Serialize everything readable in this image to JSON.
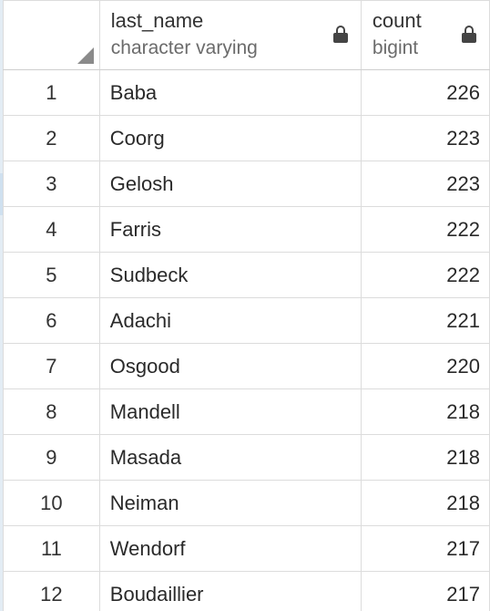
{
  "columns": {
    "last_name": {
      "name": "last_name",
      "type": "character varying"
    },
    "count": {
      "name": "count",
      "type": "bigint"
    }
  },
  "rows": [
    {
      "index": "1",
      "last_name": "Baba",
      "count": "226"
    },
    {
      "index": "2",
      "last_name": "Coorg",
      "count": "223"
    },
    {
      "index": "3",
      "last_name": "Gelosh",
      "count": "223"
    },
    {
      "index": "4",
      "last_name": "Farris",
      "count": "222"
    },
    {
      "index": "5",
      "last_name": "Sudbeck",
      "count": "222"
    },
    {
      "index": "6",
      "last_name": "Adachi",
      "count": "221"
    },
    {
      "index": "7",
      "last_name": "Osgood",
      "count": "220"
    },
    {
      "index": "8",
      "last_name": "Mandell",
      "count": "218"
    },
    {
      "index": "9",
      "last_name": "Masada",
      "count": "218"
    },
    {
      "index": "10",
      "last_name": "Neiman",
      "count": "218"
    },
    {
      "index": "11",
      "last_name": "Wendorf",
      "count": "217"
    },
    {
      "index": "12",
      "last_name": "Boudaillier",
      "count": "217"
    }
  ],
  "icons": {
    "corner": "select-all-corner-icon",
    "lock": "lock-icon"
  },
  "colors": {
    "grid_line": "#dcdcdc",
    "header_text": "#333333",
    "type_text": "#6b6b6b",
    "corner_icon": "#8a8a8a",
    "lock_icon": "#444444"
  }
}
